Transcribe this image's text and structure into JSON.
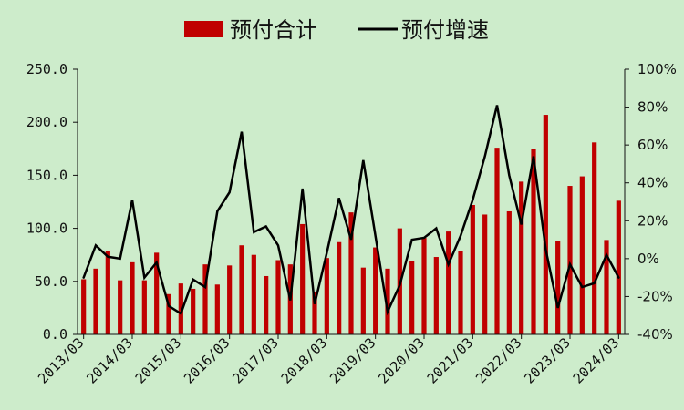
{
  "legend": {
    "bar_label": "预付合计",
    "line_label": "预付增速"
  },
  "colors": {
    "background": "#cdeccb",
    "bar": "#c00000",
    "line": "#000000",
    "axis": "#111111"
  },
  "chart_data": {
    "type": "bar",
    "title": "",
    "xlabel": "",
    "ylabel": "",
    "legend_position": "top-center",
    "grid": false,
    "ylim": [
      0,
      250
    ],
    "y2lim": [
      -40,
      100
    ],
    "y_ticks": [
      "250.0",
      "200.0",
      "150.0",
      "100.0",
      "50.0",
      "0.0"
    ],
    "y2_ticks": [
      "100%",
      "80%",
      "60%",
      "40%",
      "20%",
      "0%",
      "-20%",
      "-40%"
    ],
    "x_ticks": [
      "2013/03",
      "2014/03",
      "2015/03",
      "2016/03",
      "2017/03",
      "2018/03",
      "2019/03",
      "2020/03",
      "2021/03",
      "2022/03",
      "2023/03",
      "2024/03"
    ],
    "categories": [
      "2013Q1",
      "2013Q2",
      "2013Q3",
      "2013Q4",
      "2014Q1",
      "2014Q2",
      "2014Q3",
      "2014Q4",
      "2015Q1",
      "2015Q2",
      "2015Q3",
      "2015Q4",
      "2016Q1",
      "2016Q2",
      "2016Q3",
      "2016Q4",
      "2017Q1",
      "2017Q2",
      "2017Q3",
      "2017Q4",
      "2018Q1",
      "2018Q2",
      "2018Q3",
      "2018Q4",
      "2019Q1",
      "2019Q2",
      "2019Q3",
      "2019Q4",
      "2020Q1",
      "2020Q2",
      "2020Q3",
      "2020Q4",
      "2021Q1",
      "2021Q2",
      "2021Q3",
      "2021Q4",
      "2022Q1",
      "2022Q2",
      "2022Q3",
      "2022Q4",
      "2023Q1",
      "2023Q2",
      "2023Q3",
      "2023Q4",
      "2024Q1"
    ],
    "series": [
      {
        "name": "预付合计",
        "type": "bar",
        "axis": "left",
        "values": [
          52,
          62,
          79,
          51,
          68,
          51,
          77,
          38,
          48,
          43,
          66,
          47,
          65,
          84,
          75,
          55,
          70,
          66,
          104,
          40,
          72,
          87,
          115,
          63,
          82,
          62,
          100,
          69,
          91,
          73,
          97,
          79,
          122,
          113,
          176,
          116,
          144,
          175,
          207,
          88,
          140,
          149,
          181,
          89,
          126
        ]
      },
      {
        "name": "预付增速",
        "type": "line",
        "axis": "right",
        "values": [
          -10,
          7,
          1,
          0,
          31,
          -10,
          -2,
          -25,
          -29,
          -11,
          -15,
          25,
          35,
          67,
          14,
          17,
          7,
          -22,
          37,
          -24,
          3,
          32,
          10,
          52,
          12,
          -28,
          -14,
          10,
          11,
          16,
          -3,
          12,
          31,
          54,
          81,
          44,
          18,
          54,
          5,
          -26,
          -3,
          -15,
          -13,
          2,
          -10
        ]
      }
    ]
  }
}
